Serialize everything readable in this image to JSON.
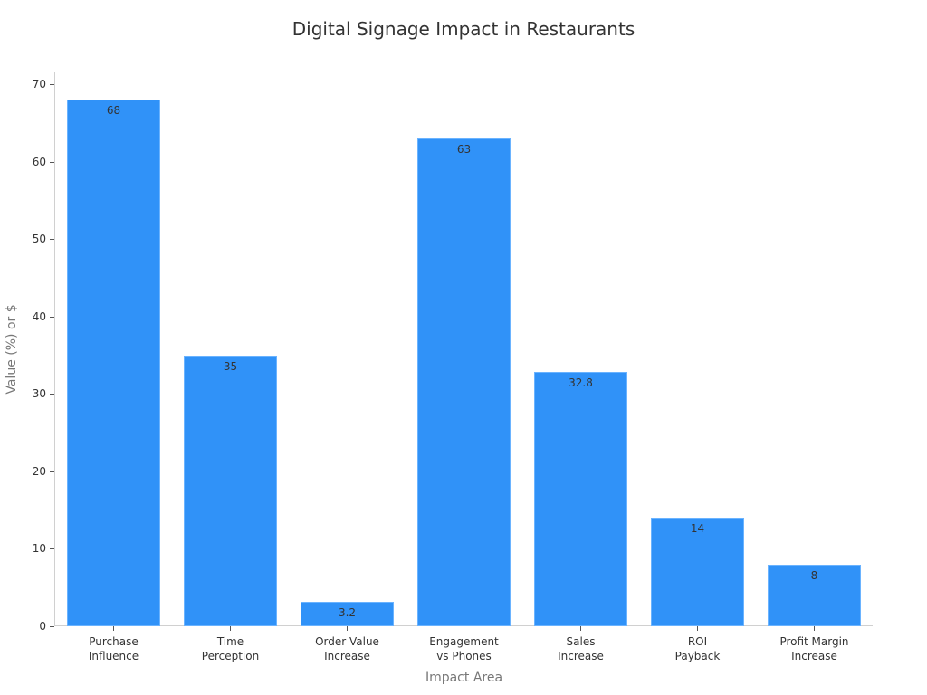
{
  "chart_data": {
    "type": "bar",
    "title": "Digital Signage Impact in Restaurants",
    "xlabel": "Impact Area",
    "ylabel": "Value (%) or $",
    "categories": [
      "Purchase\nInfluence",
      "Time\nPerception",
      "Order Value\nIncrease",
      "Engagement\nvs Phones",
      "Sales\nIncrease",
      "ROI\nPayback",
      "Profit Margin\nIncrease"
    ],
    "values": [
      68,
      35,
      3.2,
      63,
      32.8,
      14,
      8
    ],
    "value_labels": [
      "68",
      "35",
      "3.2",
      "63",
      "32.8",
      "14",
      "8"
    ],
    "ylim": [
      0,
      70
    ],
    "yticks": [
      0,
      10,
      20,
      30,
      40,
      50,
      60,
      70
    ],
    "grid": false,
    "legend": null,
    "bar_color": "#3092f8"
  }
}
